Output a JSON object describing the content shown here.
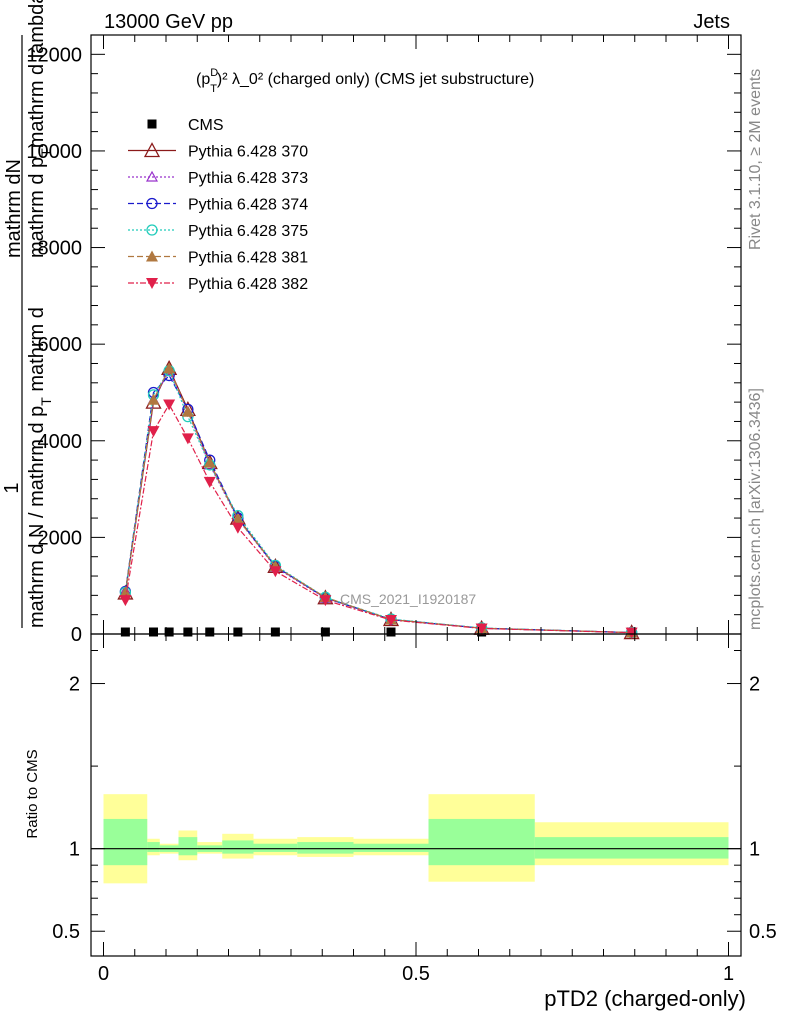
{
  "header": {
    "left": "13000 GeV pp",
    "right": "Jets"
  },
  "side_labels": {
    "rivet": "Rivet 3.1.10, ≥ 2M events",
    "mcplots": "mcplots.cern.ch [arXiv:1306.3436]"
  },
  "chart_data": [
    {
      "type": "line",
      "title_parts": {
        "base": "(p",
        "sup": "D",
        "sub": "T",
        "rest": ")² λ_0² (charged only) (CMS jet substructure)"
      },
      "ylabel_numerator": "1",
      "ylabel_parts": {
        "top": "mathrm dN",
        "top2": "mathrm d p",
        "top2_sub": "T",
        "top3": "mathrm d lambda",
        "bottom": "mathrm d N / mathrm d p",
        "bottom_sub": "T",
        "bottom2": " mathrm d"
      },
      "watermark": "CMS_2021_I1920187",
      "ylim": [
        0,
        12400
      ],
      "yticks": [
        0,
        2000,
        4000,
        6000,
        8000,
        10000,
        12000
      ],
      "ytick_labels": [
        "0",
        "2000",
        "4000",
        "6000",
        "8000",
        "10000",
        "12000"
      ],
      "x": [
        0.035,
        0.08,
        0.105,
        0.135,
        0.17,
        0.215,
        0.275,
        0.355,
        0.46,
        0.605,
        0.845
      ],
      "cms_values": [
        0,
        0,
        0,
        0,
        0,
        0,
        0,
        0,
        0,
        0,
        0
      ],
      "series": [
        {
          "name": "CMS",
          "color": "#000000",
          "marker": "square",
          "dash": "",
          "values": [
            0,
            0,
            0,
            0,
            0,
            0,
            0,
            0,
            0,
            0,
            0
          ]
        },
        {
          "name": "Pythia 6.428 370",
          "color": "#8b1a1a",
          "marker": "triangle-open",
          "dash": "",
          "values": [
            850,
            4800,
            5500,
            4650,
            3550,
            2400,
            1400,
            750,
            300,
            120,
            30
          ]
        },
        {
          "name": "Pythia 6.428 373",
          "color": "#9933cc",
          "marker": "triangle-open-small",
          "dash": "2,2",
          "values": [
            880,
            4850,
            5450,
            4600,
            3500,
            2380,
            1380,
            740,
            300,
            120,
            30
          ]
        },
        {
          "name": "Pythia 6.428 374",
          "color": "#1a1acc",
          "marker": "circle-open",
          "dash": "6,3",
          "values": [
            880,
            5000,
            5350,
            4650,
            3600,
            2400,
            1400,
            750,
            300,
            120,
            30
          ]
        },
        {
          "name": "Pythia 6.428 375",
          "color": "#22ccbb",
          "marker": "circle-open",
          "dash": "2,2",
          "values": [
            860,
            4950,
            5450,
            4500,
            3500,
            2450,
            1420,
            760,
            310,
            125,
            30
          ]
        },
        {
          "name": "Pythia 6.428 381",
          "color": "#b07840",
          "marker": "triangle-filled",
          "dash": "6,3",
          "values": [
            860,
            4850,
            5500,
            4600,
            3550,
            2380,
            1400,
            760,
            300,
            120,
            30
          ]
        },
        {
          "name": "Pythia 6.428 382",
          "color": "#e0204a",
          "marker": "triangle-down-filled",
          "dash": "6,2,2,2",
          "values": [
            700,
            4200,
            4750,
            4050,
            3150,
            2200,
            1300,
            700,
            290,
            115,
            28
          ]
        }
      ]
    },
    {
      "type": "area",
      "ylabel": "Ratio to CMS",
      "ylim": [
        0.35,
        2.3
      ],
      "yticks": [
        0.5,
        1,
        2
      ],
      "ytick_labels": [
        "0.5",
        "1",
        "2"
      ],
      "xlabel": "pTD2 (charged-only)",
      "xlim": [
        -0.02,
        1.02
      ],
      "xticks": [
        0,
        0.5,
        1
      ],
      "xtick_labels": [
        "0",
        "0.5",
        "1"
      ],
      "bins": [
        {
          "lo": 0.0,
          "hi": 0.07,
          "yellow": [
            0.79,
            1.33
          ],
          "green": [
            0.9,
            1.18
          ]
        },
        {
          "lo": 0.07,
          "hi": 0.09,
          "yellow": [
            0.96,
            1.06
          ],
          "green": [
            0.98,
            1.04
          ]
        },
        {
          "lo": 0.09,
          "hi": 0.12,
          "yellow": [
            0.97,
            1.03
          ],
          "green": [
            0.98,
            1.02
          ]
        },
        {
          "lo": 0.12,
          "hi": 0.15,
          "yellow": [
            0.93,
            1.11
          ],
          "green": [
            0.96,
            1.07
          ]
        },
        {
          "lo": 0.15,
          "hi": 0.19,
          "yellow": [
            0.97,
            1.04
          ],
          "green": [
            0.98,
            1.02
          ]
        },
        {
          "lo": 0.19,
          "hi": 0.24,
          "yellow": [
            0.94,
            1.09
          ],
          "green": [
            0.97,
            1.05
          ]
        },
        {
          "lo": 0.24,
          "hi": 0.31,
          "yellow": [
            0.96,
            1.06
          ],
          "green": [
            0.98,
            1.03
          ]
        },
        {
          "lo": 0.31,
          "hi": 0.4,
          "yellow": [
            0.95,
            1.07
          ],
          "green": [
            0.97,
            1.04
          ]
        },
        {
          "lo": 0.4,
          "hi": 0.52,
          "yellow": [
            0.96,
            1.06
          ],
          "green": [
            0.98,
            1.03
          ]
        },
        {
          "lo": 0.52,
          "hi": 0.69,
          "yellow": [
            0.8,
            1.33
          ],
          "green": [
            0.9,
            1.18
          ]
        },
        {
          "lo": 0.69,
          "hi": 1.0,
          "yellow": [
            0.9,
            1.16
          ],
          "green": [
            0.94,
            1.07
          ]
        }
      ]
    }
  ]
}
